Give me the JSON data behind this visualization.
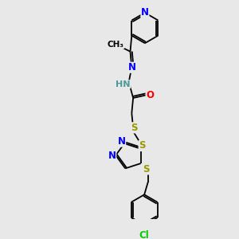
{
  "bg_color": "#e8e8e8",
  "atom_colors": {
    "N": "#0000FF",
    "S": "#999900",
    "O": "#FF0000",
    "Cl": "#00CC00",
    "C": "#000000",
    "H": "#4a9a9a"
  },
  "lw": 1.3,
  "fs": 8.5,
  "fss": 7.5
}
